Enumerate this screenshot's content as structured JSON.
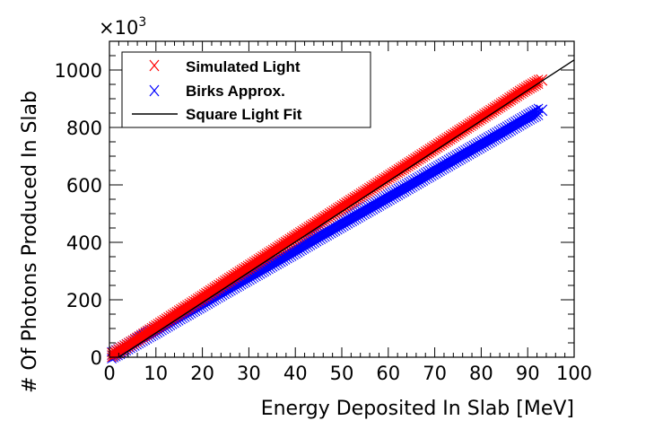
{
  "chart_data": {
    "type": "scatter",
    "title": "",
    "xlabel": "Energy Deposited In Slab [MeV]",
    "ylabel": "# Of Photons Produced In Slab",
    "y_multiplier_label": "×10",
    "y_multiplier_exponent": "3",
    "xlim": [
      0,
      100
    ],
    "ylim": [
      0,
      1100
    ],
    "x_ticks": [
      0,
      10,
      20,
      30,
      40,
      50,
      60,
      70,
      80,
      90,
      100
    ],
    "y_ticks": [
      0,
      200,
      400,
      600,
      800,
      1000
    ],
    "grid": false,
    "legend_position": "top-left",
    "series": [
      {
        "name": "Simulated Light",
        "marker": "x",
        "color": "#ff0000",
        "x": [
          0.5,
          2,
          5,
          10,
          15,
          20,
          25,
          30,
          35,
          40,
          45,
          50,
          55,
          60,
          65,
          70,
          75,
          80,
          85,
          88,
          90,
          93
        ],
        "y": [
          8,
          22,
          52,
          105,
          157,
          209,
          262,
          314,
          366,
          418,
          470,
          522,
          574,
          626,
          678,
          730,
          782,
          834,
          886,
          918,
          938,
          965
        ]
      },
      {
        "name": "Birks Approx.",
        "marker": "x",
        "color": "#0000ff",
        "x": [
          0.5,
          2,
          5,
          10,
          15,
          20,
          25,
          30,
          35,
          40,
          45,
          50,
          55,
          60,
          65,
          70,
          75,
          80,
          85,
          90,
          93
        ],
        "y": [
          7,
          19,
          47,
          93,
          140,
          186,
          233,
          279,
          325,
          371,
          418,
          464,
          510,
          556,
          602,
          649,
          695,
          741,
          787,
          834,
          860
        ]
      },
      {
        "name": "Square Light Fit",
        "marker": "line",
        "color": "#000000",
        "x": [
          2,
          100
        ],
        "y": [
          0,
          1035
        ]
      }
    ]
  }
}
